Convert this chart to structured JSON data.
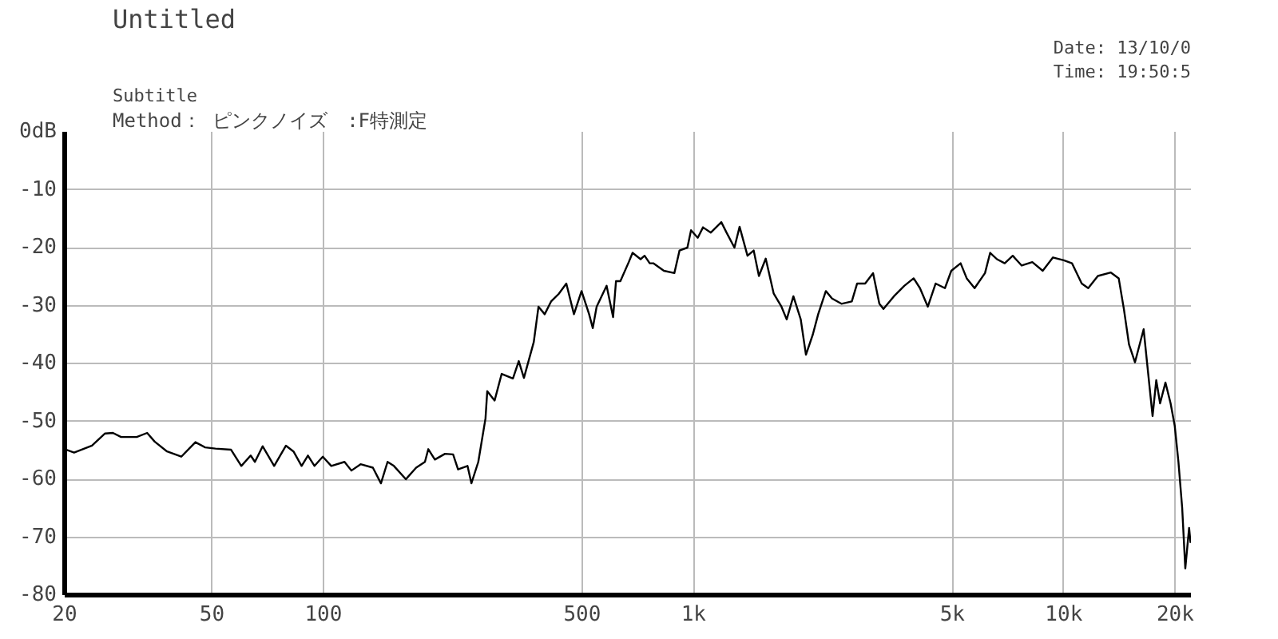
{
  "chart_data": {
    "type": "line",
    "title": "Untitled",
    "subtitle": "Subtitle",
    "annotations": [
      "Method： ピンクノイズ　:F特測定",
      "Date: 13/10/0",
      "Time: 19:50:5"
    ],
    "log": "x",
    "xlim": [
      20,
      22050
    ],
    "ylim": [
      -80,
      0
    ],
    "xticks": [
      20,
      50,
      100,
      500,
      {
        "value": 1000,
        "label": "1k"
      },
      {
        "value": 5000,
        "label": "5k"
      },
      {
        "value": 10000,
        "label": "10k"
      },
      {
        "value": 20000,
        "label": "20k"
      }
    ],
    "yticks": [
      {
        "value": 0,
        "label": "0dB"
      },
      -10,
      -20,
      -30,
      -40,
      -50,
      -60,
      -70,
      -80
    ],
    "grid": true,
    "marker": "none",
    "line_style": "solid",
    "x": [
      20,
      21.2,
      23.7,
      25.7,
      27,
      28.4,
      31.3,
      33.4,
      35,
      37.8,
      41.3,
      45.1,
      47.9,
      51.1,
      56.3,
      60,
      63.6,
      65.3,
      68.5,
      73.6,
      79.2,
      83,
      87.3,
      90.8,
      94.6,
      99.6,
      105,
      114,
      119,
      126,
      136,
      143,
      149,
      155,
      167,
      178,
      188,
      192,
      200,
      213,
      224,
      231,
      245,
      251,
      262,
      274,
      277,
      290,
      303,
      325,
      337,
      348,
      370,
      381,
      396,
      412,
      432,
      453,
      475,
      498,
      522,
      534,
      547,
      582,
      606,
      617,
      634,
      668,
      684,
      719,
      737,
      761,
      778,
      831,
      887,
      916,
      962,
      984,
      1026,
      1060,
      1113,
      1188,
      1227,
      1289,
      1331,
      1398,
      1453,
      1501,
      1566,
      1645,
      1727,
      1784,
      1860,
      1947,
      2011,
      2099,
      2170,
      2276,
      2366,
      2508,
      2675,
      2765,
      2906,
      3053,
      3175,
      3257,
      3476,
      3707,
      3930,
      4087,
      4292,
      4506,
      4774,
      4967,
      5263,
      5466,
      5741,
      6125,
      6325,
      6597,
      6924,
      7279,
      7695,
      8220,
      8771,
      9348,
      10000,
      10520,
      11180,
      11640,
      12360,
      13400,
      14070,
      14530,
      15000,
      15570,
      16430,
      16810,
      17370,
      17770,
      18200,
      18820,
      19430,
      19940,
      20400,
      20880,
      21290,
      21800,
      22000
    ],
    "series": [
      {
        "color": "#000000",
        "values": [
          -54.8,
          -55.4,
          -54.2,
          -52.1,
          -52,
          -52.7,
          -52.7,
          -52,
          -53.5,
          -55.2,
          -56.1,
          -53.6,
          -54.5,
          -54.7,
          -54.9,
          -57.7,
          -55.9,
          -57,
          -54.3,
          -57.7,
          -54.2,
          -55.2,
          -57.7,
          -55.9,
          -57.7,
          -56.1,
          -57.7,
          -57,
          -58.5,
          -57.4,
          -58,
          -60.7,
          -57,
          -57.7,
          -60,
          -58,
          -57,
          -54.8,
          -56.6,
          -55.6,
          -55.7,
          -58.3,
          -57.7,
          -60.7,
          -57,
          -49.5,
          -44.8,
          -46.4,
          -41.8,
          -42.6,
          -39.6,
          -42.5,
          -36.3,
          -30.2,
          -31.5,
          -29.3,
          -28,
          -26.2,
          -31.5,
          -27.5,
          -31.5,
          -33.9,
          -30.2,
          -26.6,
          -32,
          -25.8,
          -25.8,
          -22.5,
          -20.9,
          -22,
          -21.4,
          -22.7,
          -22.7,
          -24,
          -24.4,
          -20.5,
          -20,
          -17,
          -18.3,
          -16.5,
          -17.4,
          -15.6,
          -17.4,
          -20,
          -16.4,
          -21.4,
          -20.5,
          -24.9,
          -21.9,
          -27.9,
          -30.2,
          -32.4,
          -28.4,
          -32.4,
          -38.5,
          -35,
          -31.5,
          -27.5,
          -28.8,
          -29.7,
          -29.3,
          -26.2,
          -26.2,
          -24.4,
          -29.7,
          -30.6,
          -28.4,
          -26.6,
          -25.3,
          -27,
          -30.2,
          -26.2,
          -27,
          -24,
          -22.7,
          -25.3,
          -27,
          -24.4,
          -20.9,
          -22,
          -22.7,
          -21.4,
          -23.1,
          -22.5,
          -24,
          -21.7,
          -22.2,
          -22.7,
          -26.2,
          -27,
          -24.9,
          -24.3,
          -25.3,
          -30.6,
          -36.7,
          -39.8,
          -34.1,
          -40.3,
          -49.1,
          -42.9,
          -46.9,
          -43.3,
          -46.9,
          -50.8,
          -57,
          -64.9,
          -75.4,
          -68.4,
          -71
        ]
      }
    ]
  }
}
